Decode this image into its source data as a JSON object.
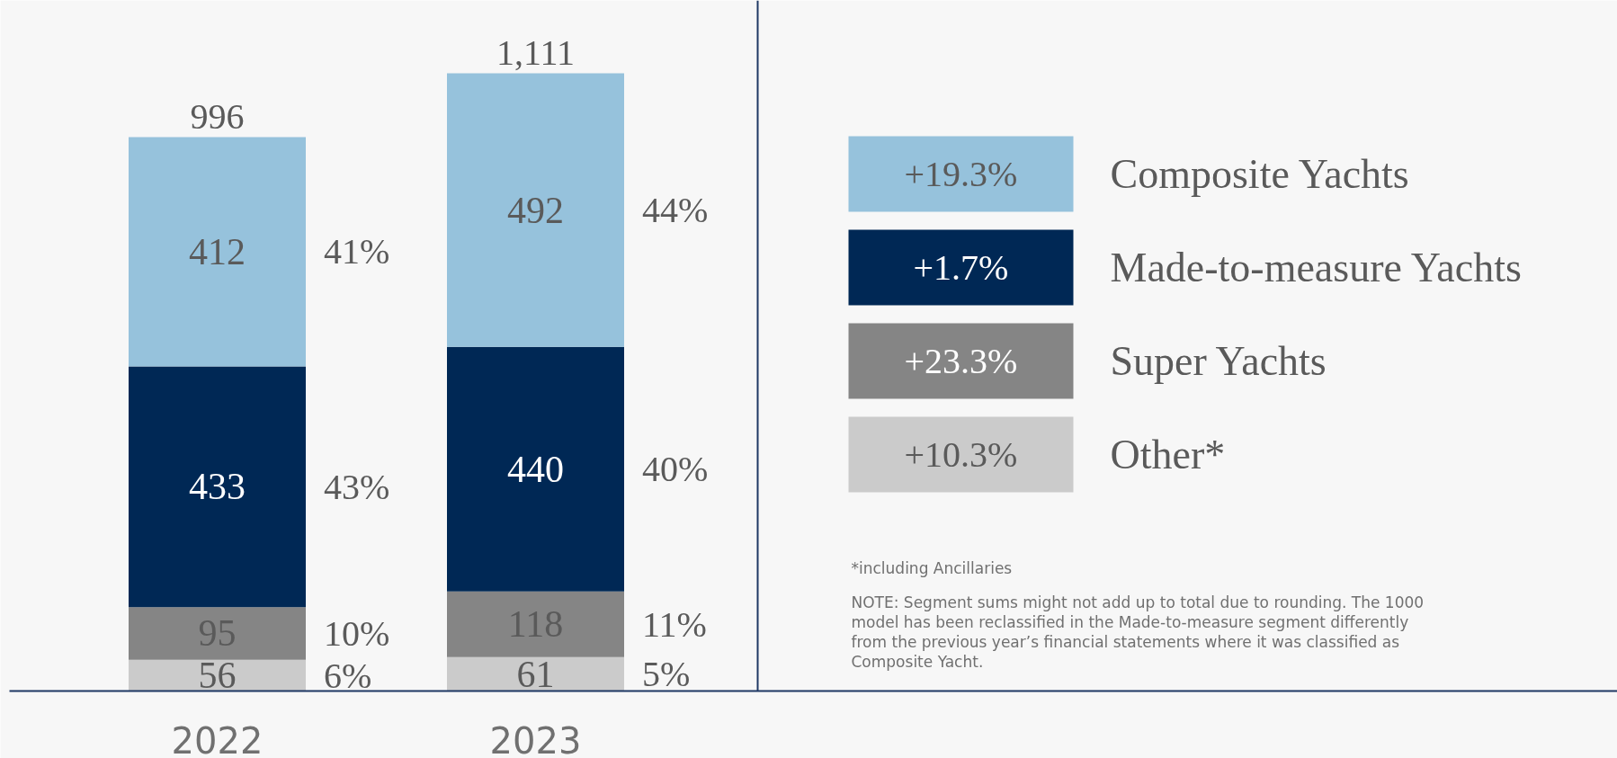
{
  "chart_data": {
    "type": "bar",
    "stacked": true,
    "data_labels": true,
    "legend": "right",
    "categories": [
      "2022",
      "2023"
    ],
    "series": [
      {
        "name": "Other*",
        "color": "#cbcbcb",
        "values": [
          56,
          61
        ]
      },
      {
        "name": "Super Yachts",
        "color": "#858585",
        "values": [
          95,
          118
        ]
      },
      {
        "name": "Made-to-measure Yachts",
        "color": "#002855",
        "values": [
          433,
          440
        ]
      },
      {
        "name": "Composite Yachts",
        "color": "#96c2dc",
        "values": [
          412,
          492
        ]
      }
    ],
    "totals": [
      "996",
      "1,111"
    ],
    "annotations": [
      "+10.3%",
      "+23.3%",
      "+1.7%",
      "+19.3%",
      "6%",
      "10%",
      "43%",
      "41%",
      "5%",
      "11%",
      "40%",
      "44%",
      "*including Ancillaries",
      "NOTE: Segment sums might not add up to total due to rounding. The 1000 model has been reclassified in the Made-to-measure segment differently from the previous year’s financial statements where it was classified as Composite Yacht."
    ]
  }
}
